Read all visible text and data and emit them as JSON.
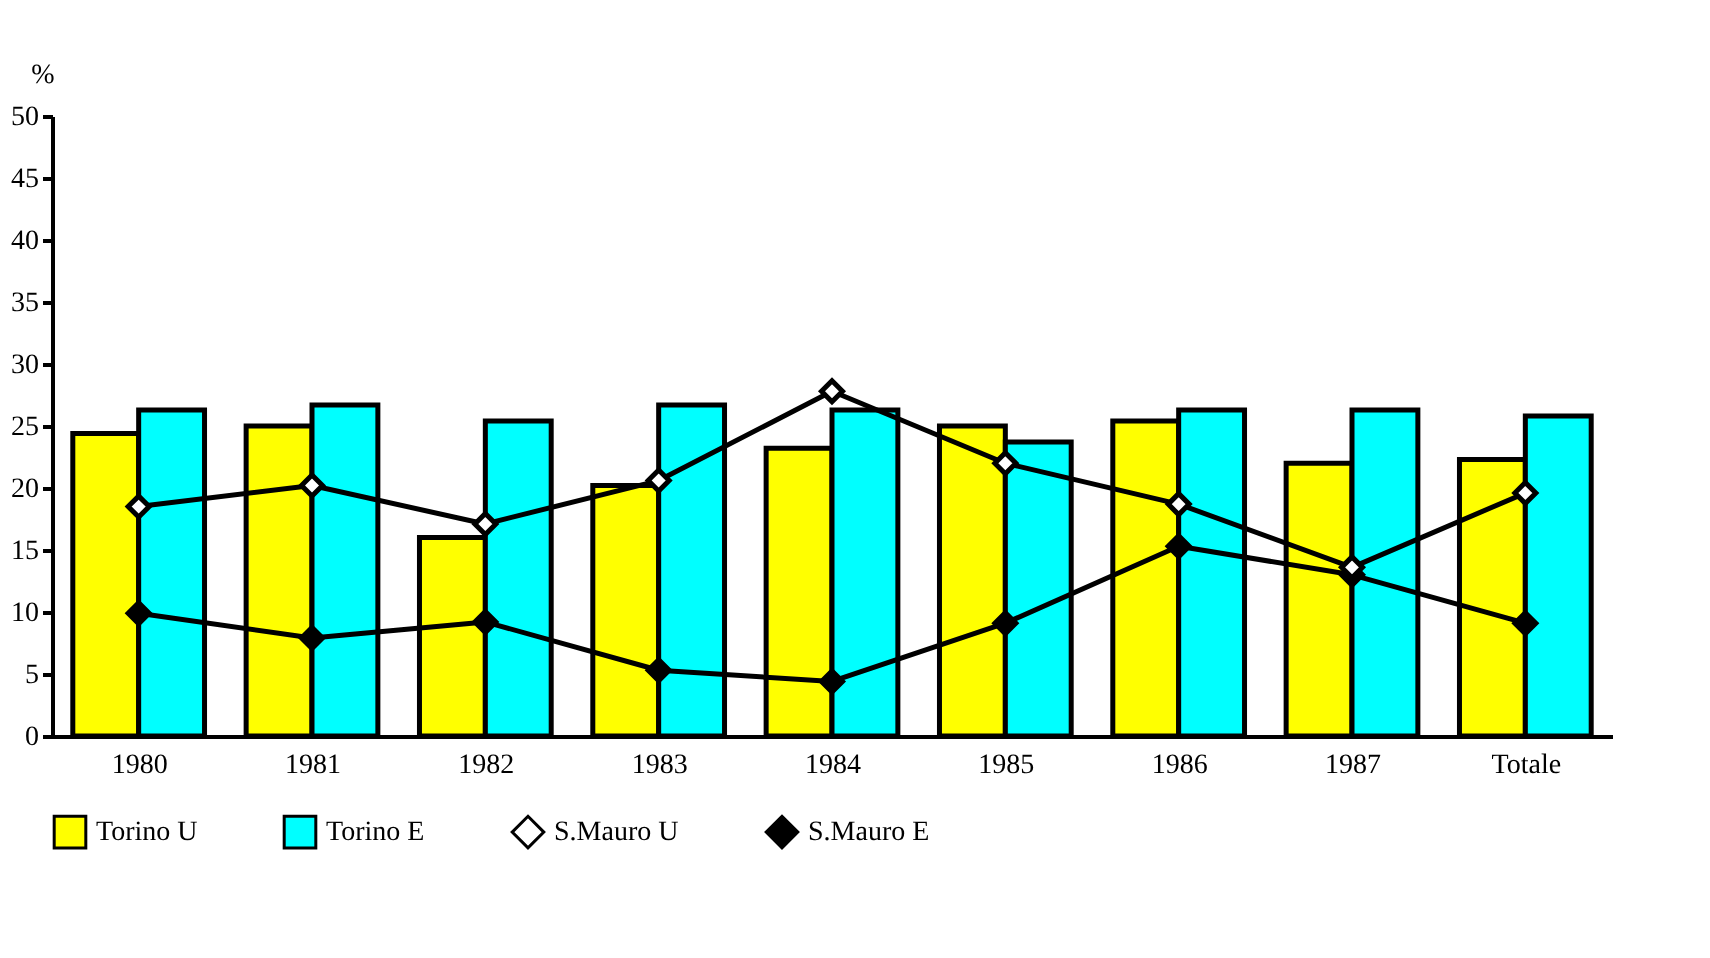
{
  "chart_data": {
    "type": "bar",
    "ylabel": "%",
    "categories": [
      "1980",
      "1981",
      "1982",
      "1983",
      "1984",
      "1985",
      "1986",
      "1987",
      "Totale"
    ],
    "series": [
      {
        "name": "Torino U",
        "color": "#ffff00",
        "values": [
          24.4,
          25.0,
          16.0,
          20.2,
          23.2,
          25.0,
          25.4,
          22.0,
          22.3
        ]
      },
      {
        "name": "Torino E",
        "color": "#00ffff",
        "values": [
          26.3,
          26.7,
          25.4,
          26.7,
          26.3,
          23.7,
          26.3,
          26.3,
          25.8
        ]
      },
      {
        "name": "S.Mauro U",
        "type": "line",
        "color": "#ffffff",
        "values": [
          18.5,
          20.2,
          17.1,
          20.6,
          27.8,
          22.0,
          18.7,
          13.6,
          19.6
        ]
      },
      {
        "name": "S.Mauro E",
        "type": "line",
        "color": "#000000",
        "values": [
          9.9,
          7.9,
          9.2,
          5.3,
          4.4,
          9.1,
          15.3,
          13.0,
          9.1
        ]
      }
    ],
    "ylim": [
      0,
      50
    ],
    "yticks": [
      0,
      5,
      10,
      15,
      20,
      25,
      30,
      35,
      40,
      45,
      50
    ],
    "grid": false,
    "legend": "bottom",
    "marker": "diamond",
    "line_style": "solid"
  }
}
